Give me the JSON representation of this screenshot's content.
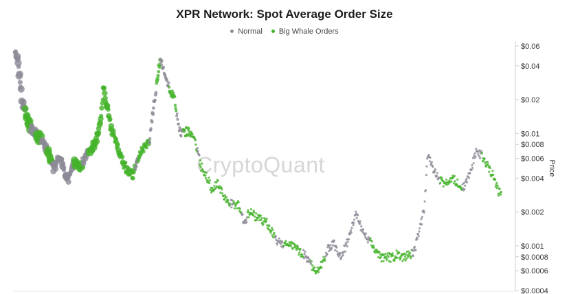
{
  "chart_data": {
    "type": "scatter",
    "title": "XPR Network: Spot Average Order Size",
    "watermark": "CryptoQuant",
    "ylabel": "Price",
    "y_scale": "log",
    "ylim": [
      0.0004,
      0.06
    ],
    "y_ticks": [
      {
        "value": 0.06,
        "label": "$0.06"
      },
      {
        "value": 0.04,
        "label": "$0.04"
      },
      {
        "value": 0.02,
        "label": "$0.02"
      },
      {
        "value": 0.01,
        "label": "$0.01"
      },
      {
        "value": 0.008,
        "label": "$0.008"
      },
      {
        "value": 0.006,
        "label": "$0.006"
      },
      {
        "value": 0.004,
        "label": "$0.004"
      },
      {
        "value": 0.002,
        "label": "$0.002"
      },
      {
        "value": 0.001,
        "label": "$0.001"
      },
      {
        "value": 0.0008,
        "label": "$0.0008"
      },
      {
        "value": 0.0006,
        "label": "$0.0006"
      },
      {
        "value": 0.0004,
        "label": "$0.0004"
      }
    ],
    "x_range": [
      0,
      100
    ],
    "grid": false,
    "legend_position": "top-center",
    "series": [
      {
        "name": "Normal",
        "color": "#8c8a96"
      },
      {
        "name": "Big Whale Orders",
        "color": "#45b32a"
      }
    ],
    "price_path": [
      [
        0,
        0.055
      ],
      [
        0.6,
        0.04
      ],
      [
        1.2,
        0.02
      ],
      [
        2.0,
        0.014
      ],
      [
        3.0,
        0.011
      ],
      [
        4.0,
        0.0095
      ],
      [
        5.0,
        0.0085
      ],
      [
        6.0,
        0.0065
      ],
      [
        7.0,
        0.0048
      ],
      [
        8.0,
        0.0065
      ],
      [
        8.8,
        0.0045
      ],
      [
        9.5,
        0.0038
      ],
      [
        10.5,
        0.0056
      ],
      [
        11.5,
        0.0048
      ],
      [
        12.5,
        0.0062
      ],
      [
        13.5,
        0.007
      ],
      [
        14.5,
        0.0085
      ],
      [
        15.2,
        0.012
      ],
      [
        15.8,
        0.026
      ],
      [
        17.2,
        0.011
      ],
      [
        18.5,
        0.0072
      ],
      [
        19.5,
        0.0052
      ],
      [
        21.0,
        0.0042
      ],
      [
        22.5,
        0.0068
      ],
      [
        24.0,
        0.0085
      ],
      [
        25.2,
        0.025
      ],
      [
        26.0,
        0.046
      ],
      [
        27.2,
        0.028
      ],
      [
        28.5,
        0.02
      ],
      [
        29.5,
        0.01
      ],
      [
        31.0,
        0.0105
      ],
      [
        32.2,
        0.0085
      ],
      [
        33.2,
        0.0052
      ],
      [
        34.2,
        0.0042
      ],
      [
        35.2,
        0.0032
      ],
      [
        36.2,
        0.0037
      ],
      [
        37.2,
        0.0028
      ],
      [
        38.5,
        0.0024
      ],
      [
        40.0,
        0.0023
      ],
      [
        41.0,
        0.0016
      ],
      [
        42.0,
        0.0021
      ],
      [
        43.0,
        0.0018
      ],
      [
        44.0,
        0.0017
      ],
      [
        45.0,
        0.0016
      ],
      [
        46.0,
        0.0013
      ],
      [
        47.0,
        0.00108
      ],
      [
        49.0,
        0.00105
      ],
      [
        50.5,
        0.00092
      ],
      [
        52.0,
        0.00082
      ],
      [
        53.0,
        0.00068
      ],
      [
        54.0,
        0.00058
      ],
      [
        55.0,
        0.0007
      ],
      [
        56.0,
        0.00095
      ],
      [
        57.0,
        0.00105
      ],
      [
        58.0,
        0.00078
      ],
      [
        59.0,
        0.00095
      ],
      [
        60.0,
        0.0013
      ],
      [
        61.0,
        0.002
      ],
      [
        61.6,
        0.0016
      ],
      [
        62.4,
        0.00125
      ],
      [
        63.4,
        0.00112
      ],
      [
        64.4,
        0.0009
      ],
      [
        65.4,
        0.00078
      ],
      [
        66.4,
        0.00082
      ],
      [
        67.4,
        0.00078
      ],
      [
        68.4,
        0.00085
      ],
      [
        69.4,
        0.0008
      ],
      [
        70.4,
        0.00082
      ],
      [
        71.4,
        0.0009
      ],
      [
        72.4,
        0.0014
      ],
      [
        73.2,
        0.0022
      ],
      [
        73.8,
        0.0065
      ],
      [
        74.6,
        0.005
      ],
      [
        75.4,
        0.0042
      ],
      [
        76.4,
        0.0037
      ],
      [
        77.4,
        0.0036
      ],
      [
        78.4,
        0.0039
      ],
      [
        79.4,
        0.0036
      ],
      [
        80.4,
        0.0033
      ],
      [
        81.4,
        0.0046
      ],
      [
        82.4,
        0.0068
      ],
      [
        83.4,
        0.0064
      ],
      [
        84.4,
        0.0053
      ],
      [
        85.4,
        0.0043
      ],
      [
        86.4,
        0.0031
      ],
      [
        87.0,
        0.0028
      ]
    ],
    "whale_ranges": [
      [
        1.8,
        2.8
      ],
      [
        3.8,
        4.6
      ],
      [
        5.8,
        6.6
      ],
      [
        10.5,
        12.0
      ],
      [
        13.0,
        21.5
      ],
      [
        22.0,
        24.0
      ],
      [
        25.2,
        26.0
      ],
      [
        27.5,
        28.8
      ],
      [
        30.0,
        32.5
      ],
      [
        33.0,
        38.5
      ],
      [
        39.0,
        40.5
      ],
      [
        41.5,
        46.5
      ],
      [
        48.0,
        51.5
      ],
      [
        53.0,
        55.5
      ],
      [
        63.5,
        71.0
      ],
      [
        76.0,
        80.0
      ],
      [
        83.5,
        87.0
      ]
    ]
  }
}
